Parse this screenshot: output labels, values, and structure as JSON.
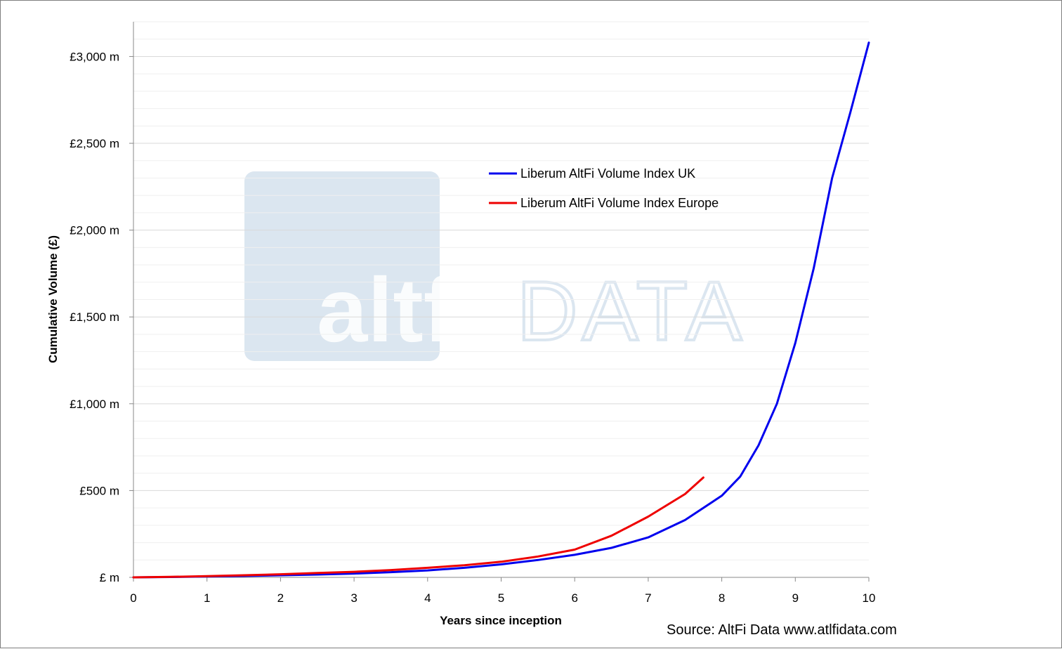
{
  "chart_data": {
    "type": "line",
    "xlabel": "Years since inception",
    "ylabel": "Cumulative Volume (£)",
    "xlim": [
      0,
      10
    ],
    "ylim": [
      0,
      3200
    ],
    "x_ticks": [
      "0",
      "1",
      "2",
      "3",
      "4",
      "5",
      "6",
      "7",
      "8",
      "9",
      "10"
    ],
    "y_ticks": [
      "£ m",
      "£500 m",
      "£1,000 m",
      "£1,500 m",
      "£2,000 m",
      "£2,500 m",
      "£3,000 m"
    ],
    "y_tick_values": [
      0,
      500,
      1000,
      1500,
      2000,
      2500,
      3000
    ],
    "grid": "horizontal",
    "legend_position": "top-center",
    "series": [
      {
        "name": "Liberum AltFi Volume Index UK",
        "color": "#0000ee",
        "x": [
          0,
          0.5,
          1,
          1.5,
          2,
          2.5,
          3,
          3.5,
          4,
          4.5,
          5,
          5.5,
          6,
          6.5,
          7,
          7.5,
          8,
          8.25,
          8.5,
          8.75,
          9,
          9.25,
          9.5,
          9.75,
          10
        ],
        "y": [
          0,
          2,
          5,
          8,
          12,
          16,
          22,
          30,
          40,
          55,
          75,
          100,
          130,
          170,
          230,
          330,
          470,
          580,
          760,
          1000,
          1350,
          1780,
          2300,
          2680,
          3080
        ]
      },
      {
        "name": "Liberum AltFi Volume Index Europe",
        "color": "#ee0000",
        "x": [
          0,
          0.5,
          1,
          1.5,
          2,
          2.5,
          3,
          3.5,
          4,
          4.5,
          5,
          5.5,
          6,
          6.5,
          7,
          7.5,
          7.75
        ],
        "y": [
          0,
          3,
          7,
          12,
          18,
          25,
          32,
          42,
          55,
          70,
          90,
          120,
          160,
          240,
          350,
          480,
          575
        ]
      }
    ]
  },
  "watermark": {
    "word1": "altfi",
    "word2": "DATA"
  },
  "source": "Source: AltFi Data www.atlfidata.com"
}
